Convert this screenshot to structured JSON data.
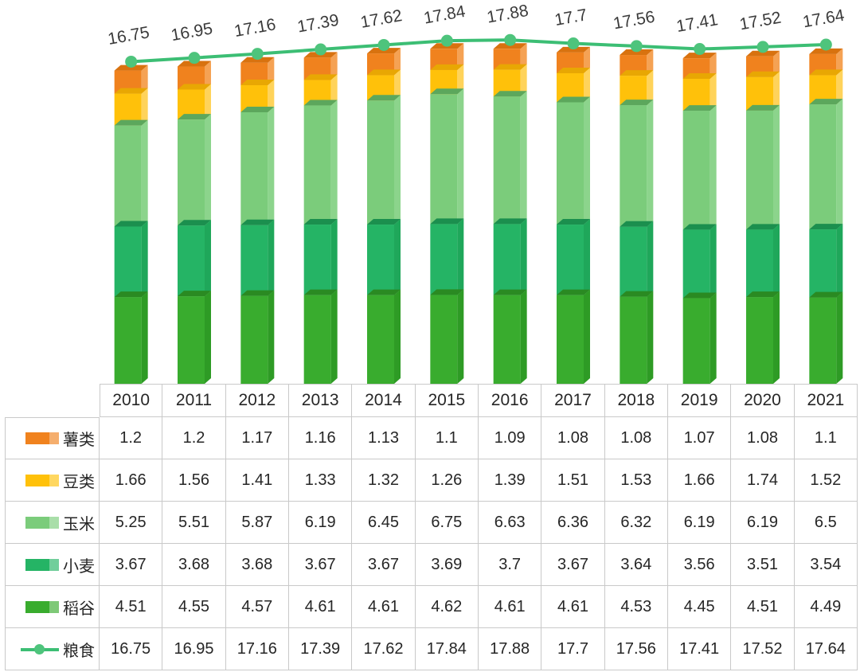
{
  "chart_data": {
    "type": "bar",
    "subtype": "stacked-3d-columns-with-line-overlay-and-data-table",
    "title": "",
    "xlabel": "",
    "ylabel": "",
    "ylim": [
      0,
      18.5
    ],
    "grid": false,
    "axes_visible": false,
    "legend_position": "table-left-column",
    "categories": [
      "2010",
      "2011",
      "2012",
      "2013",
      "2014",
      "2015",
      "2016",
      "2017",
      "2018",
      "2019",
      "2020",
      "2021"
    ],
    "stack_order_bottom_to_top": [
      "稻谷",
      "小麦",
      "玉米",
      "豆类",
      "薯类"
    ],
    "line_label_series": "粮食",
    "series": [
      {
        "name": "薯类",
        "type": "bar",
        "color": "#F0821E",
        "side": "#F5A254",
        "top": "#D8720F",
        "values": [
          1.2,
          1.2,
          1.17,
          1.16,
          1.13,
          1.1,
          1.09,
          1.08,
          1.08,
          1.07,
          1.08,
          1.1
        ]
      },
      {
        "name": "豆类",
        "type": "bar",
        "color": "#FFC10A",
        "side": "#FFD35A",
        "top": "#E8A703",
        "values": [
          1.66,
          1.56,
          1.41,
          1.33,
          1.32,
          1.26,
          1.39,
          1.51,
          1.53,
          1.66,
          1.74,
          1.52
        ]
      },
      {
        "name": "玉米",
        "type": "bar",
        "color": "#7BCC7B",
        "side": "#8CD48C",
        "top": "#5CA75C",
        "values": [
          5.25,
          5.51,
          5.87,
          6.19,
          6.45,
          6.75,
          6.63,
          6.36,
          6.32,
          6.19,
          6.19,
          6.5
        ]
      },
      {
        "name": "小麦",
        "type": "bar",
        "color": "#25B465",
        "side": "#1FA75A",
        "top": "#1B8F4E",
        "values": [
          3.67,
          3.68,
          3.68,
          3.67,
          3.67,
          3.69,
          3.7,
          3.67,
          3.64,
          3.56,
          3.51,
          3.54
        ]
      },
      {
        "name": "稻谷",
        "type": "bar",
        "color": "#39AC2E",
        "side": "#2E9B25",
        "top": "#2A8A22",
        "values": [
          4.51,
          4.55,
          4.57,
          4.61,
          4.61,
          4.62,
          4.61,
          4.61,
          4.53,
          4.45,
          4.51,
          4.49
        ]
      },
      {
        "name": "粮食",
        "type": "line",
        "color": "#3CBE74",
        "marker": "#4EC47C",
        "values": [
          16.75,
          16.95,
          17.16,
          17.39,
          17.62,
          17.84,
          17.88,
          17.7,
          17.56,
          17.41,
          17.52,
          17.64
        ]
      }
    ],
    "label_color": "#3A3A3A",
    "table_border_color": "#C9C9C9",
    "table_text_color": "#262626"
  }
}
